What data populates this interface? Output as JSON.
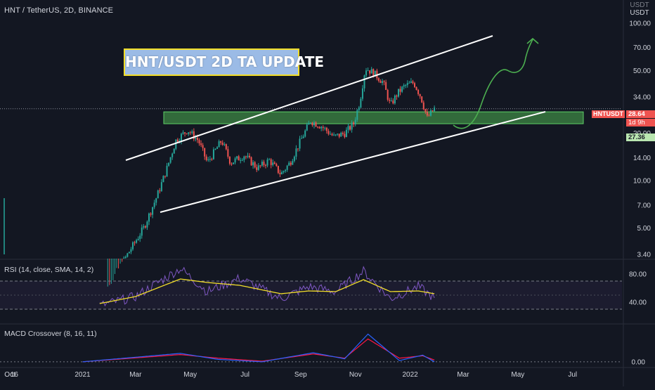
{
  "header": {
    "symbol_title": "HNT / TetherUS, 2D, BINANCE",
    "currency_label_line1": "USDT",
    "currency_label_line2": "USDT"
  },
  "banner": {
    "text": "HNT/USDT 2D TA UPDATE"
  },
  "price_tags": {
    "symbol": "HNTUSDT",
    "last_price": "28.64",
    "countdown": "1d 9h",
    "zone_price": "27.36"
  },
  "colors": {
    "background": "#131722",
    "up_candle": "#26a69a",
    "down_candle": "#ef5350",
    "zone_fill": "#4caf50",
    "channel_line": "#ffffff",
    "projection_arrow": "#4caf50",
    "rsi_line": "#7e57c2",
    "rsi_ma_line": "#f2de2a",
    "macd_line": "#2962ff",
    "signal_line": "#ff1744",
    "banner_bg": "#9bbbe6",
    "banner_border": "#f2de2a"
  },
  "panes": {
    "rsi_label": "RSI (14, close, SMA, 14, 2)",
    "macd_label": "MACD Crossover (8, 16, 11)"
  },
  "chart_data": [
    {
      "type": "candlestick",
      "title": "HNT / TetherUS, 2D, BINANCE",
      "y_scale": "log",
      "y_ticks": [
        3.4,
        5.0,
        7.0,
        10.0,
        14.0,
        20.0,
        34.0,
        50.0,
        70.0,
        100.0
      ],
      "y_tick_labels": [
        "3.40",
        "5.00",
        "7.00",
        "10.00",
        "14.00",
        "20.00",
        "34.00",
        "50.00",
        "70.00",
        "100.00"
      ],
      "x_tick_labels": [
        "Oct",
        "16",
        "2021",
        "Mar",
        "May",
        "Jul",
        "Sep",
        "Nov",
        "2022",
        "Mar",
        "May",
        "Jul"
      ],
      "x_range": [
        "2020-10-01",
        "2022-08-25"
      ],
      "approx_close_path": [
        {
          "date": "2021-01-15",
          "close": 1.5
        },
        {
          "date": "2021-02-20",
          "close": 3.4
        },
        {
          "date": "2021-03-10",
          "close": 5.0
        },
        {
          "date": "2021-03-25",
          "close": 8.0
        },
        {
          "date": "2021-04-05",
          "close": 12.0
        },
        {
          "date": "2021-04-15",
          "close": 18.0
        },
        {
          "date": "2021-04-28",
          "close": 21.0
        },
        {
          "date": "2021-05-10",
          "close": 18.0
        },
        {
          "date": "2021-05-20",
          "close": 13.0
        },
        {
          "date": "2021-06-05",
          "close": 18.0
        },
        {
          "date": "2021-06-15",
          "close": 13.0
        },
        {
          "date": "2021-06-30",
          "close": 14.5
        },
        {
          "date": "2021-07-15",
          "close": 12.0
        },
        {
          "date": "2021-07-28",
          "close": 13.5
        },
        {
          "date": "2021-08-10",
          "close": 11.0
        },
        {
          "date": "2021-08-20",
          "close": 13.0
        },
        {
          "date": "2021-09-01",
          "close": 18.0
        },
        {
          "date": "2021-09-12",
          "close": 24.0
        },
        {
          "date": "2021-09-25",
          "close": 22.0
        },
        {
          "date": "2021-10-08",
          "close": 19.0
        },
        {
          "date": "2021-10-20",
          "close": 20.0
        },
        {
          "date": "2021-10-30",
          "close": 23.0
        },
        {
          "date": "2021-11-06",
          "close": 32.0
        },
        {
          "date": "2021-11-12",
          "close": 52.0
        },
        {
          "date": "2021-11-22",
          "close": 48.0
        },
        {
          "date": "2021-12-02",
          "close": 42.0
        },
        {
          "date": "2021-12-10",
          "close": 30.0
        },
        {
          "date": "2021-12-18",
          "close": 36.0
        },
        {
          "date": "2021-12-26",
          "close": 40.0
        },
        {
          "date": "2022-01-05",
          "close": 42.0
        },
        {
          "date": "2022-01-13",
          "close": 34.0
        },
        {
          "date": "2022-01-20",
          "close": 25.0
        },
        {
          "date": "2022-01-28",
          "close": 28.64
        }
      ],
      "support_zone": {
        "low": 23.0,
        "high": 27.36
      },
      "last_price": 28.64
    },
    {
      "type": "line",
      "title": "RSI (14, close, SMA, 14, 2)",
      "y_ticks": [
        40.0,
        80.0
      ],
      "y_tick_labels": [
        "40.00",
        "80.00"
      ],
      "bands": [
        30,
        70
      ],
      "series": [
        {
          "name": "RSI",
          "x": [
            "2021-01-20",
            "2021-03-01",
            "2021-04-20",
            "2021-05-20",
            "2021-06-25",
            "2021-08-10",
            "2021-09-10",
            "2021-10-10",
            "2021-11-10",
            "2021-12-10",
            "2022-01-10",
            "2022-01-28"
          ],
          "values": [
            35,
            48,
            88,
            55,
            74,
            45,
            62,
            55,
            84,
            45,
            62,
            46
          ]
        },
        {
          "name": "SMA",
          "x": [
            "2021-01-20",
            "2021-03-01",
            "2021-04-20",
            "2021-05-20",
            "2021-06-25",
            "2021-08-10",
            "2021-09-10",
            "2021-10-10",
            "2021-11-10",
            "2021-12-10",
            "2022-01-10",
            "2022-01-28"
          ],
          "values": [
            38,
            48,
            73,
            68,
            64,
            52,
            56,
            55,
            72,
            55,
            56,
            52
          ]
        }
      ]
    },
    {
      "type": "line",
      "title": "MACD Crossover (8, 16, 11)",
      "y_ticks": [
        0.0
      ],
      "y_tick_labels": [
        "0.00"
      ],
      "series": [
        {
          "name": "MACD",
          "x": [
            "2021-01-01",
            "2021-04-20",
            "2021-06-01",
            "2021-07-20",
            "2021-09-15",
            "2021-10-20",
            "2021-11-15",
            "2021-12-20",
            "2022-01-15",
            "2022-01-28"
          ],
          "values": [
            0.0,
            1.4,
            0.4,
            0.0,
            1.5,
            0.5,
            4.6,
            0.2,
            1.1,
            0.0
          ]
        },
        {
          "name": "Signal",
          "x": [
            "2021-01-01",
            "2021-04-20",
            "2021-06-01",
            "2021-07-20",
            "2021-09-15",
            "2021-10-20",
            "2021-11-15",
            "2021-12-20",
            "2022-01-15",
            "2022-01-28"
          ],
          "values": [
            0.0,
            1.2,
            0.6,
            0.1,
            1.3,
            0.6,
            3.8,
            0.6,
            1.0,
            0.3
          ]
        }
      ]
    }
  ]
}
